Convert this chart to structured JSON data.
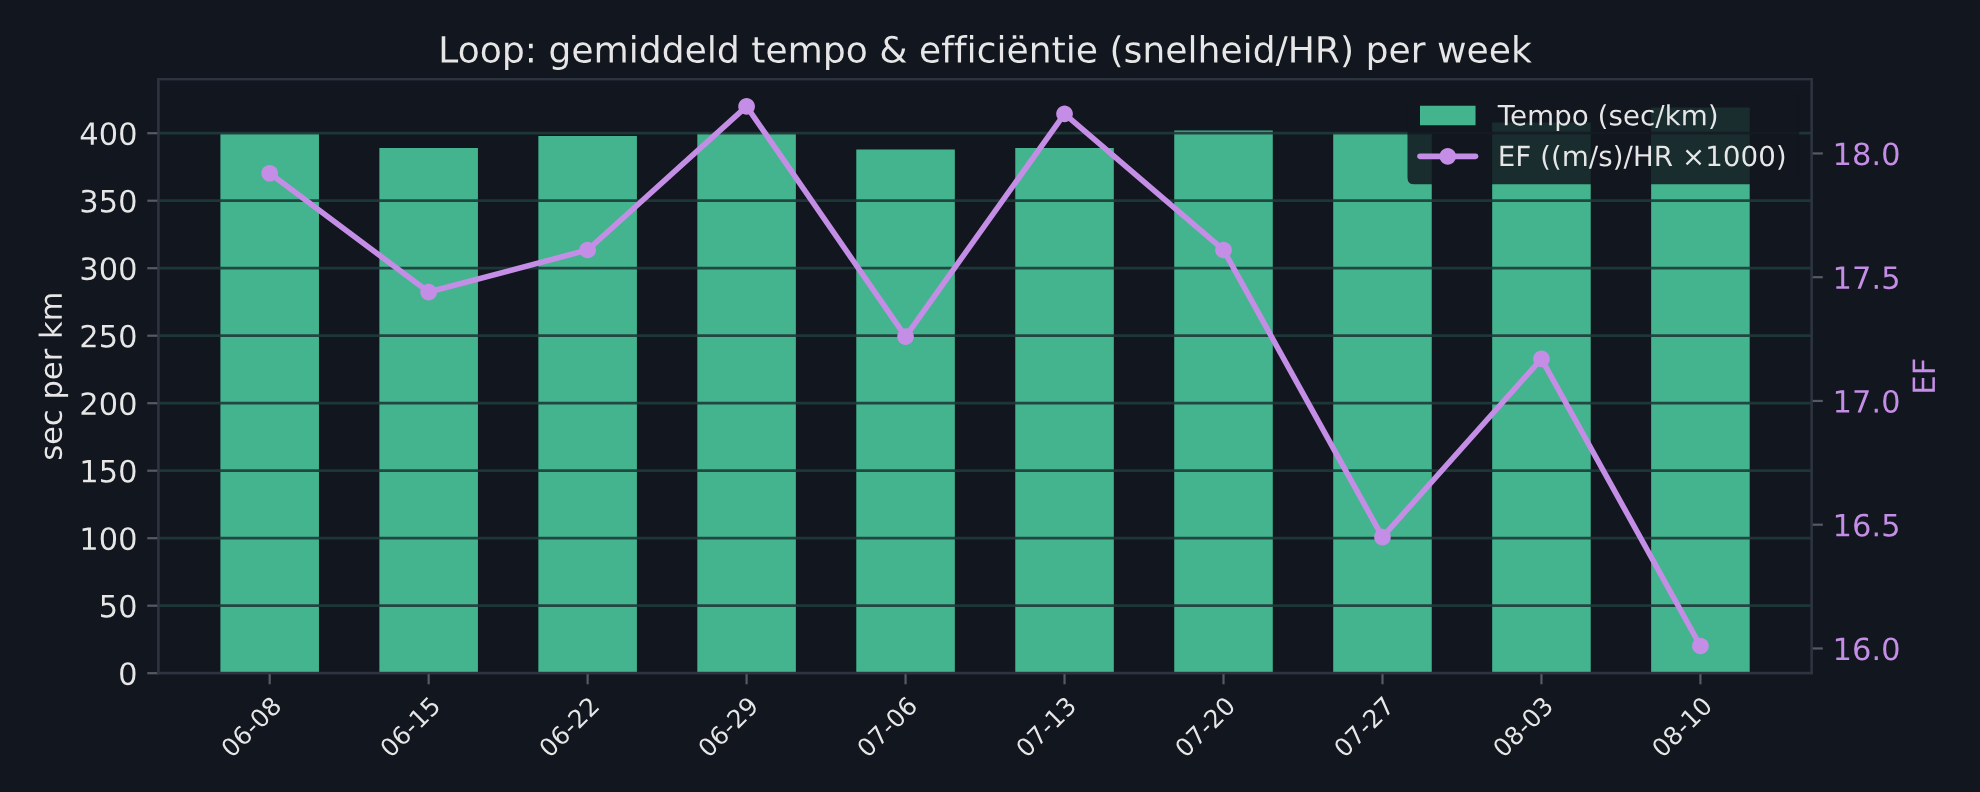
{
  "chart_data": {
    "type": "bar",
    "title": "Loop: gemiddeld tempo & efficiëntie (snelheid/HR) per week",
    "categories": [
      "06-08",
      "06-15",
      "06-22",
      "06-29",
      "07-06",
      "07-13",
      "07-20",
      "07-27",
      "08-03",
      "08-10"
    ],
    "series": [
      {
        "name": "Tempo (sec/km)",
        "color": "#44b48f",
        "values": [
          400,
          389,
          398,
          400,
          388,
          389,
          402,
          400,
          408,
          419
        ]
      },
      {
        "name": "EF ((m/s)/HR ×1000)",
        "type": "line",
        "axis": "y2",
        "color": "#c58ee6",
        "marker": "circle",
        "line_style": "solid",
        "values": [
          17.92,
          17.44,
          17.61,
          18.19,
          17.26,
          18.16,
          17.61,
          16.45,
          17.17,
          16.01
        ]
      }
    ],
    "ylabel": "sec per km",
    "y2label": "EF",
    "ylim": [
      0,
      440
    ],
    "yticks": [
      0,
      50,
      100,
      150,
      200,
      250,
      300,
      350,
      400
    ],
    "y2lim": [
      15.9,
      18.3
    ],
    "y2ticks": [
      {
        "value": 16.0,
        "label": "16.0"
      },
      {
        "value": 16.5,
        "label": "16.5"
      },
      {
        "value": 17.0,
        "label": "17.0"
      },
      {
        "value": 17.5,
        "label": "17.5"
      },
      {
        "value": 18.0,
        "label": "18.0"
      }
    ],
    "grid": "y",
    "legend": "top right"
  }
}
